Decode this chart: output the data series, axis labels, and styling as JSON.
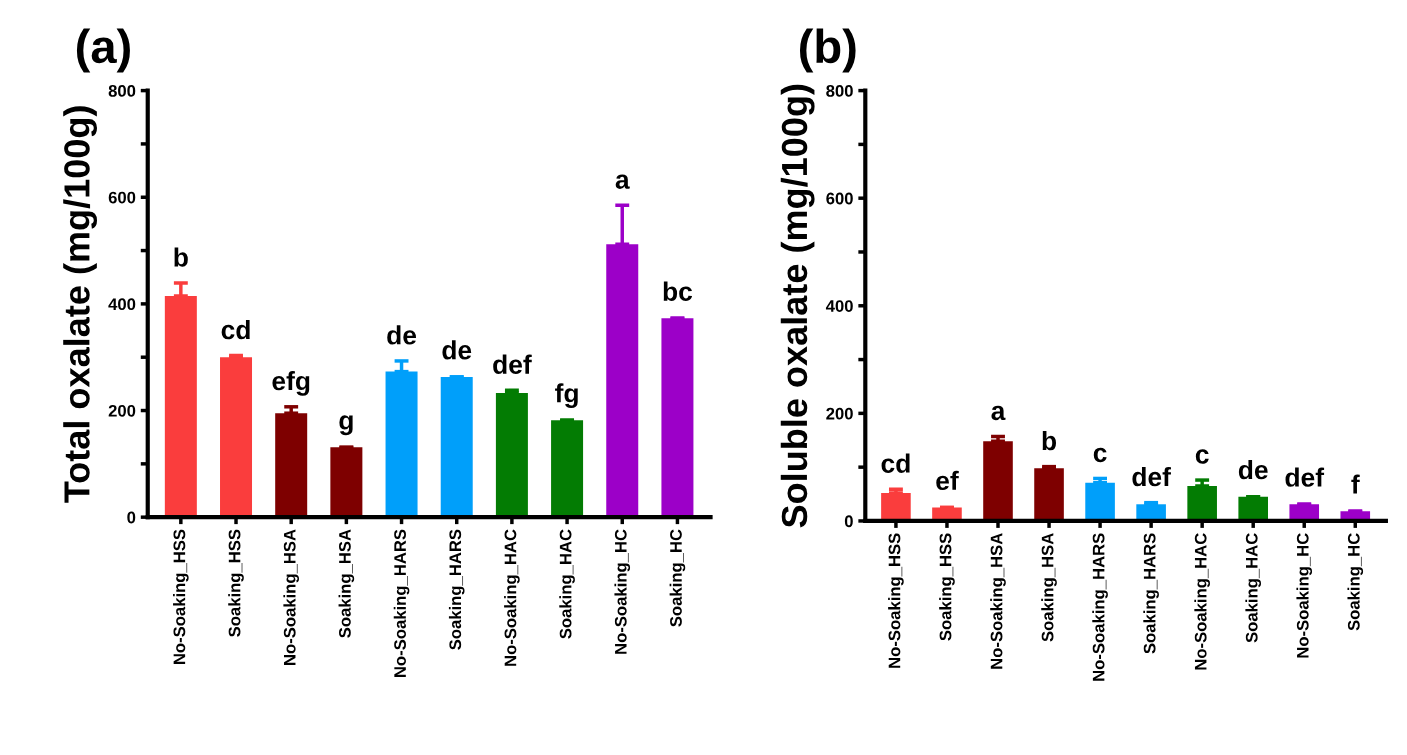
{
  "chart_data": [
    {
      "type": "bar",
      "title": "(a)",
      "ylabel": "Total oxalate (mg/100g)",
      "categories": [
        "No-Soaking_HSS",
        "Soaking_HSS",
        "No-Soaking_HSA",
        "Soaking_HSA",
        "No-Soaking_HARS",
        "Soaking_HARS",
        "No-Soaking_HAC",
        "Soaking_HAC",
        "No-Soaking_HC",
        "Soaking_HC"
      ],
      "values": [
        415,
        300,
        195,
        131,
        273,
        263,
        233,
        182,
        512,
        373
      ],
      "errors": [
        24,
        3,
        12,
        null,
        20,
        null,
        5,
        null,
        73,
        null
      ],
      "colors": [
        "#fa3d3d",
        "#fa3d3d",
        "#7e0000",
        "#7e0000",
        "#009ffa",
        "#009ffa",
        "#037c03",
        "#037c03",
        "#9c00c8",
        "#9c00c8"
      ],
      "ylim": [
        0,
        800
      ],
      "yticks": [
        0,
        {
          "value": 100,
          "label": null
        },
        200,
        {
          "value": 300,
          "label": null
        },
        400,
        {
          "value": 500,
          "label": null
        },
        600,
        {
          "value": 700,
          "label": null
        },
        800
      ],
      "annotations": [
        {
          "text": "b",
          "x": "No-Soaking_HSS",
          "y": 439
        },
        {
          "text": "cd",
          "x": "Soaking_HSS",
          "y": 303
        },
        {
          "text": "efg",
          "x": "No-Soaking_HSA",
          "y": 207
        },
        {
          "text": "g",
          "x": "Soaking_HSA",
          "y": 133
        },
        {
          "text": "de",
          "x": "No-Soaking_HARS",
          "y": 293
        },
        {
          "text": "de",
          "x": "Soaking_HARS",
          "y": 265
        },
        {
          "text": "def",
          "x": "No-Soaking_HAC",
          "y": 238
        },
        {
          "text": "fg",
          "x": "Soaking_HAC",
          "y": 184
        },
        {
          "text": "a",
          "x": "No-Soaking_HC",
          "y": 585
        },
        {
          "text": "bc",
          "x": "Soaking_HC",
          "y": 375
        }
      ]
    },
    {
      "type": "bar",
      "title": "(b)",
      "ylabel": "Soluble oxalate (mg/100g)",
      "categories": [
        "No-Soaking_HSS",
        "Soaking_HSS",
        "No-Soaking_HSA",
        "Soaking_HSA",
        "No-Soaking_HARS",
        "Soaking_HARS",
        "No-Soaking_HAC",
        "Soaking_HAC",
        "No-Soaking_HC",
        "Soaking_HC"
      ],
      "values": [
        52,
        25,
        148,
        98,
        71,
        31,
        65,
        45,
        31,
        18
      ],
      "errors": [
        7,
        null,
        9,
        3,
        8,
        3,
        11,
        null,
        null,
        null
      ],
      "colors": [
        "#fa3d3d",
        "#fa3d3d",
        "#7e0000",
        "#7e0000",
        "#009ffa",
        "#009ffa",
        "#037c03",
        "#037c03",
        "#9c00c8",
        "#9c00c8"
      ],
      "ylim": [
        0,
        800
      ],
      "yticks": [
        0,
        {
          "value": 100,
          "label": null
        },
        200,
        {
          "value": 300,
          "label": null
        },
        400,
        {
          "value": 500,
          "label": null
        },
        600,
        {
          "value": 700,
          "label": null
        },
        800
      ],
      "annotations": [
        {
          "text": "cd",
          "x": "No-Soaking_HSS",
          "y": 59
        },
        {
          "text": "ef",
          "x": "Soaking_HSS",
          "y": 27
        },
        {
          "text": "a",
          "x": "No-Soaking_HSA",
          "y": 157
        },
        {
          "text": "b",
          "x": "Soaking_HSA",
          "y": 101
        },
        {
          "text": "c",
          "x": "No-Soaking_HARS",
          "y": 79
        },
        {
          "text": "def",
          "x": "Soaking_HARS",
          "y": 34
        },
        {
          "text": "c",
          "x": "No-Soaking_HAC",
          "y": 76
        },
        {
          "text": "de",
          "x": "Soaking_HAC",
          "y": 47
        },
        {
          "text": "def",
          "x": "No-Soaking_HC",
          "y": 33
        },
        {
          "text": "f",
          "x": "Soaking_HC",
          "y": 20
        }
      ]
    }
  ]
}
